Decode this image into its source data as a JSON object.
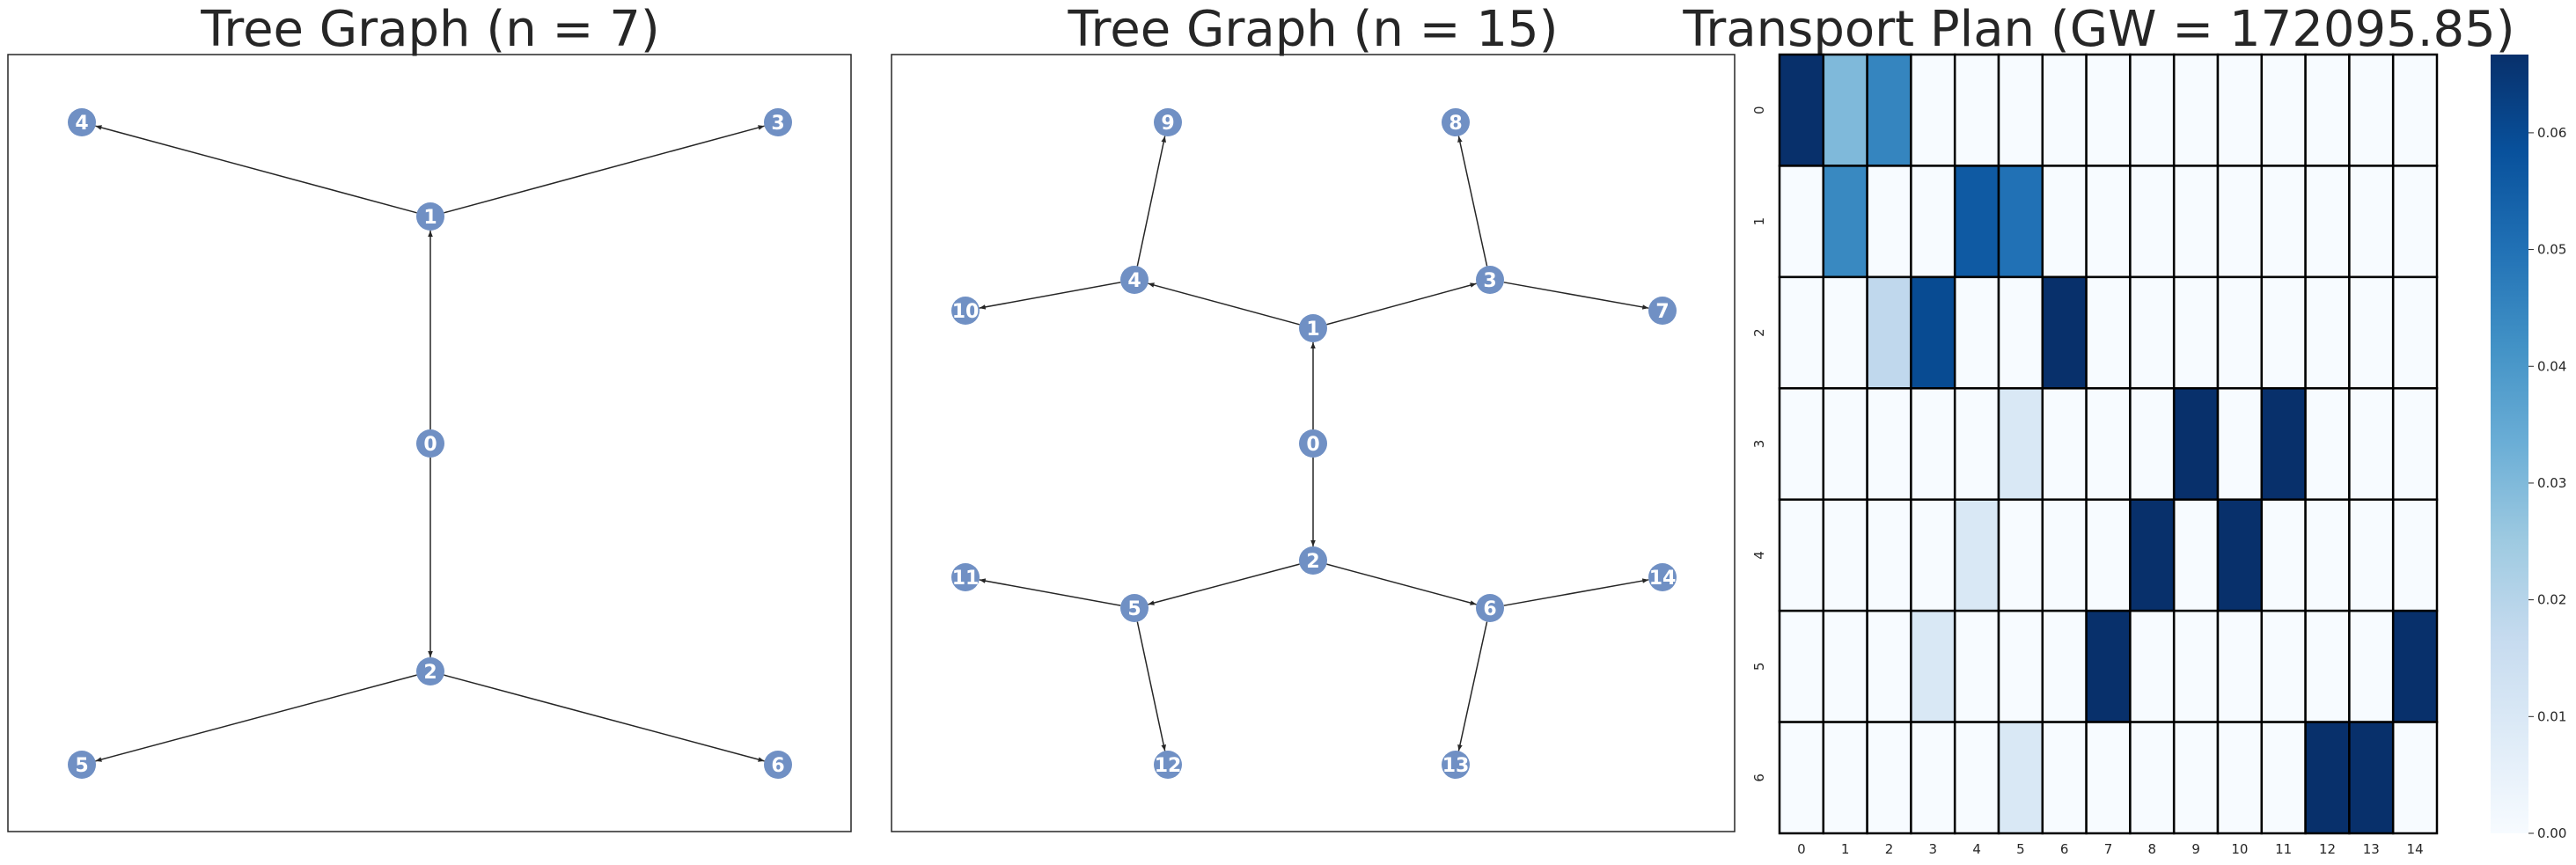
{
  "chart_data": [
    {
      "type": "network",
      "title": "Tree Graph (n = 7)",
      "nodes": [
        "0",
        "1",
        "2",
        "3",
        "4",
        "5",
        "6"
      ],
      "edges": [
        [
          "0",
          "1"
        ],
        [
          "0",
          "2"
        ],
        [
          "1",
          "3"
        ],
        [
          "1",
          "4"
        ],
        [
          "2",
          "5"
        ],
        [
          "2",
          "6"
        ]
      ]
    },
    {
      "type": "network",
      "title": "Tree Graph (n = 15)",
      "nodes": [
        "0",
        "1",
        "2",
        "3",
        "4",
        "5",
        "6",
        "7",
        "8",
        "9",
        "10",
        "11",
        "12",
        "13",
        "14"
      ],
      "edges": [
        [
          "0",
          "1"
        ],
        [
          "0",
          "2"
        ],
        [
          "1",
          "3"
        ],
        [
          "1",
          "4"
        ],
        [
          "2",
          "5"
        ],
        [
          "2",
          "6"
        ],
        [
          "3",
          "7"
        ],
        [
          "3",
          "8"
        ],
        [
          "4",
          "9"
        ],
        [
          "4",
          "10"
        ],
        [
          "5",
          "11"
        ],
        [
          "5",
          "12"
        ],
        [
          "6",
          "13"
        ],
        [
          "6",
          "14"
        ]
      ]
    },
    {
      "type": "heatmap",
      "title": "Transport Plan (GW = 172095.85)",
      "x": [
        "0",
        "1",
        "2",
        "3",
        "4",
        "5",
        "6",
        "7",
        "8",
        "9",
        "10",
        "11",
        "12",
        "13",
        "14"
      ],
      "y": [
        "0",
        "1",
        "2",
        "3",
        "4",
        "5",
        "6"
      ],
      "values": [
        [
          0.0667,
          0.03,
          0.045,
          0,
          0,
          0,
          0,
          0,
          0,
          0,
          0,
          0,
          0,
          0,
          0
        ],
        [
          0,
          0.044,
          0,
          0,
          0.056,
          0.05,
          0,
          0,
          0,
          0,
          0,
          0,
          0,
          0,
          0
        ],
        [
          0,
          0,
          0.018,
          0.06,
          0,
          0,
          0.0667,
          0,
          0,
          0,
          0,
          0,
          0,
          0,
          0
        ],
        [
          0,
          0,
          0,
          0,
          0,
          0.01,
          0,
          0,
          0,
          0.0667,
          0,
          0.0667,
          0,
          0,
          0
        ],
        [
          0,
          0,
          0,
          0,
          0.01,
          0,
          0,
          0,
          0.0667,
          0,
          0.0667,
          0,
          0,
          0,
          0
        ],
        [
          0,
          0,
          0,
          0.01,
          0,
          0,
          0,
          0.0667,
          0,
          0,
          0,
          0,
          0,
          0,
          0.0667
        ],
        [
          0,
          0,
          0,
          0,
          0,
          0.01,
          0,
          0,
          0,
          0,
          0,
          0,
          0.0667,
          0.0667,
          0
        ]
      ],
      "colorbar": {
        "min": 0,
        "max": 0.0667,
        "ticks": [
          0.0,
          0.01,
          0.02,
          0.03,
          0.04,
          0.05,
          0.06
        ],
        "tick_labels": [
          "0.00",
          "0.01",
          "0.02",
          "0.03",
          "0.04",
          "0.05",
          "0.06"
        ]
      },
      "colormap": "Blues",
      "colormap_stops": [
        "#f7fbff",
        "#deebf7",
        "#c6dbef",
        "#9ecae1",
        "#6baed6",
        "#4292c6",
        "#2171b5",
        "#08519c",
        "#08306b"
      ]
    }
  ],
  "colors": {
    "node_fill": "#7090c4",
    "node_label": "#ffffff",
    "edge": "#262626",
    "cell_border": "#000000"
  }
}
